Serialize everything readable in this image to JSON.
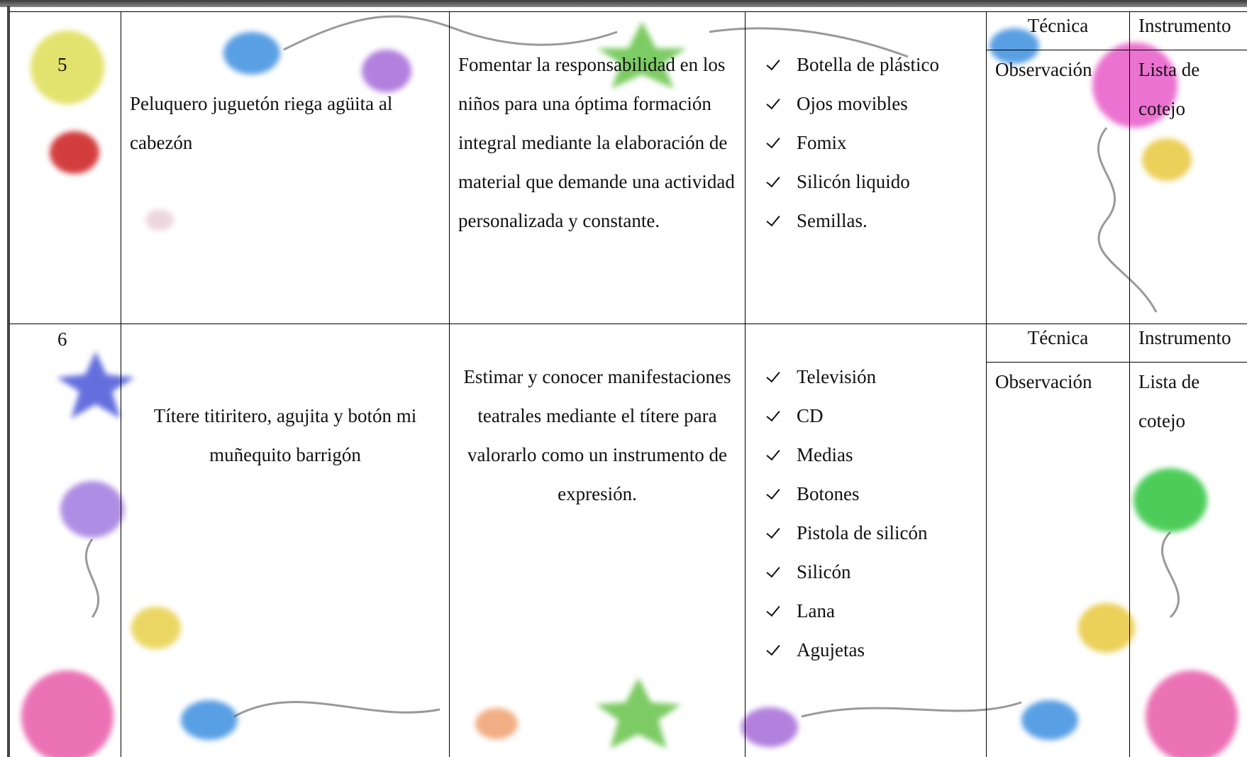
{
  "table": {
    "rows": [
      {
        "number": "5",
        "activity": "Peluquero juguetón riega agüita al cabezón",
        "objective": "Fomentar la responsabilidad en los niños para una óptima formación integral mediante la elaboración de material que demande una actividad personalizada y constante.",
        "materials": [
          "Botella de plástico",
          "Ojos movibles",
          "Fomix",
          "Silicón liquido",
          "Semillas."
        ],
        "technique_header": "Técnica",
        "instrument_header": "Instrumento",
        "technique": "Observación",
        "instrument": "Lista de cotejo"
      },
      {
        "number": "6",
        "activity": "Títere titiritero, agujita y botón mi muñequito barrigón",
        "objective": "Estimar y conocer manifestaciones teatrales mediante el títere para valorarlo como un instrumento de expresión.",
        "materials": [
          "Televisión",
          "CD",
          "Medias",
          "Botones",
          "Pistola de silicón",
          "Silicón",
          "Lana",
          "Agujetas"
        ],
        "technique_header": "Técnica",
        "instrument_header": "Instrumento",
        "technique": "Observación",
        "instrument": "Lista de cotejo"
      }
    ]
  }
}
